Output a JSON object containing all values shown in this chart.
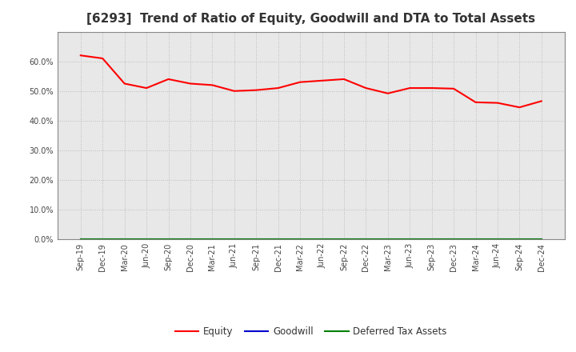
{
  "title": "[6293]  Trend of Ratio of Equity, Goodwill and DTA to Total Assets",
  "x_labels": [
    "Sep-19",
    "Dec-19",
    "Mar-20",
    "Jun-20",
    "Sep-20",
    "Dec-20",
    "Mar-21",
    "Jun-21",
    "Sep-21",
    "Dec-21",
    "Mar-22",
    "Jun-22",
    "Sep-22",
    "Dec-22",
    "Mar-23",
    "Jun-23",
    "Sep-23",
    "Dec-23",
    "Mar-24",
    "Jun-24",
    "Sep-24",
    "Dec-24"
  ],
  "equity": [
    0.62,
    0.61,
    0.525,
    0.51,
    0.54,
    0.525,
    0.52,
    0.5,
    0.503,
    0.51,
    0.53,
    0.535,
    0.54,
    0.51,
    0.492,
    0.51,
    0.51,
    0.508,
    0.462,
    0.46,
    0.445,
    0.466
  ],
  "goodwill": [
    0,
    0,
    0,
    0,
    0,
    0,
    0,
    0,
    0,
    0,
    0,
    0,
    0,
    0,
    0,
    0,
    0,
    0,
    0,
    0,
    0,
    0
  ],
  "dta": [
    0,
    0,
    0,
    0,
    0,
    0,
    0,
    0,
    0,
    0,
    0,
    0,
    0,
    0,
    0,
    0,
    0,
    0,
    0,
    0,
    0,
    0
  ],
  "equity_color": "#ff0000",
  "goodwill_color": "#0000cc",
  "dta_color": "#008000",
  "ylim": [
    0.0,
    0.7
  ],
  "yticks": [
    0.0,
    0.1,
    0.2,
    0.3,
    0.4,
    0.5,
    0.6
  ],
  "background_color": "#ffffff",
  "plot_bg_color": "#e8e8e8",
  "grid_color": "#bbbbbb",
  "title_fontsize": 11,
  "tick_fontsize": 7,
  "legend_labels": [
    "Equity",
    "Goodwill",
    "Deferred Tax Assets"
  ]
}
